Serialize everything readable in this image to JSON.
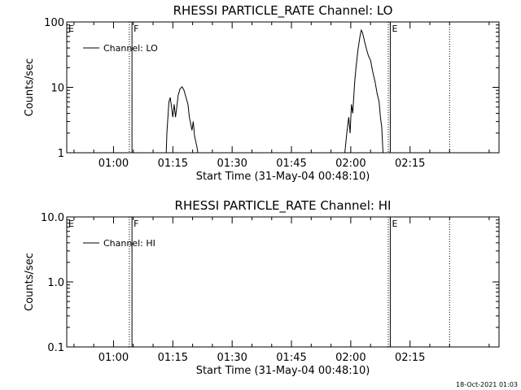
{
  "chart_data": [
    {
      "type": "line",
      "title": "RHESSI PARTICLE_RATE Channel: LO",
      "xlabel": "Start Time (31-May-04 00:48:10)",
      "ylabel": "Counts/sec",
      "y_scale": "log",
      "ylim": [
        1,
        100
      ],
      "y_ticks": [
        "1",
        "10",
        "100"
      ],
      "x_ticks": [
        "01:00",
        "01:15",
        "01:30",
        "01:45",
        "02:00",
        "02:15"
      ],
      "x_range_minutes": [
        "00:48:10",
        "02:37:30"
      ],
      "legend": {
        "position": "top-left",
        "entries": [
          "Channel: LO"
        ]
      },
      "annotations": [
        {
          "label": "E",
          "time": "00:48:10",
          "style": "none"
        },
        {
          "label": "F",
          "time": "01:04:40",
          "style": "solid"
        },
        {
          "label": "E",
          "time": "02:10:00",
          "style": "solid"
        }
      ],
      "dotted_markers": [
        "01:04:00",
        "02:09:30",
        "02:25:00"
      ],
      "series": [
        {
          "name": "Channel: LO",
          "segments": [
            [
              [
                "01:13:20",
                1.0
              ],
              [
                "01:13:30",
                2.0
              ],
              [
                "01:14:00",
                6.0
              ],
              [
                "01:14:20",
                7.0
              ],
              [
                "01:14:40",
                5.0
              ],
              [
                "01:15:00",
                3.5
              ],
              [
                "01:15:20",
                5.5
              ],
              [
                "01:15:40",
                3.5
              ],
              [
                "01:16:00",
                5.0
              ],
              [
                "01:16:20",
                7.5
              ],
              [
                "01:16:50",
                9.5
              ],
              [
                "01:17:20",
                10.2
              ],
              [
                "01:17:50",
                9.0
              ],
              [
                "01:18:20",
                7.0
              ],
              [
                "01:18:50",
                5.5
              ],
              [
                "01:19:10",
                3.5
              ],
              [
                "01:19:30",
                2.8
              ],
              [
                "01:19:50",
                2.2
              ],
              [
                "01:20:10",
                3.0
              ],
              [
                "01:20:30",
                1.8
              ],
              [
                "01:21:00",
                1.3
              ],
              [
                "01:21:20",
                1.0
              ]
            ],
            [
              [
                "01:58:30",
                1.0
              ],
              [
                "01:59:00",
                2.0
              ],
              [
                "01:59:30",
                3.5
              ],
              [
                "01:59:50",
                2.0
              ],
              [
                "02:00:10",
                5.5
              ],
              [
                "02:00:30",
                4.0
              ],
              [
                "02:01:00",
                12.0
              ],
              [
                "02:01:20",
                20.0
              ],
              [
                "02:01:50",
                38.0
              ],
              [
                "02:02:20",
                60.0
              ],
              [
                "02:02:40",
                75.0
              ],
              [
                "02:03:00",
                68.0
              ],
              [
                "02:03:30",
                50.0
              ],
              [
                "02:04:00",
                38.0
              ],
              [
                "02:04:30",
                30.0
              ],
              [
                "02:05:00",
                26.0
              ],
              [
                "02:05:30",
                18.0
              ],
              [
                "02:06:10",
                12.0
              ],
              [
                "02:06:40",
                8.0
              ],
              [
                "02:07:10",
                6.0
              ],
              [
                "02:07:30",
                3.5
              ],
              [
                "02:07:50",
                2.5
              ],
              [
                "02:08:10",
                1.0
              ]
            ]
          ]
        }
      ]
    },
    {
      "type": "line",
      "title": "RHESSI PARTICLE_RATE Channel: HI",
      "xlabel": "Start Time (31-May-04 00:48:10)",
      "ylabel": "Counts/sec",
      "y_scale": "log",
      "ylim": [
        0.1,
        10
      ],
      "y_ticks": [
        "0.1",
        "1.0",
        "10.0"
      ],
      "x_ticks": [
        "01:00",
        "01:15",
        "01:30",
        "01:45",
        "02:00",
        "02:15"
      ],
      "x_range_minutes": [
        "00:48:10",
        "02:37:30"
      ],
      "legend": {
        "position": "top-left",
        "entries": [
          "Channel: HI"
        ]
      },
      "annotations": [
        {
          "label": "E",
          "time": "00:48:10",
          "style": "none"
        },
        {
          "label": "F",
          "time": "01:04:40",
          "style": "solid"
        },
        {
          "label": "E",
          "time": "02:10:00",
          "style": "solid"
        }
      ],
      "dotted_markers": [
        "01:04:00",
        "02:09:30",
        "02:25:00"
      ],
      "series": [
        {
          "name": "Channel: HI",
          "segments": []
        }
      ]
    }
  ],
  "footer": {
    "timestamp": "18-Oct-2021 01:03"
  }
}
